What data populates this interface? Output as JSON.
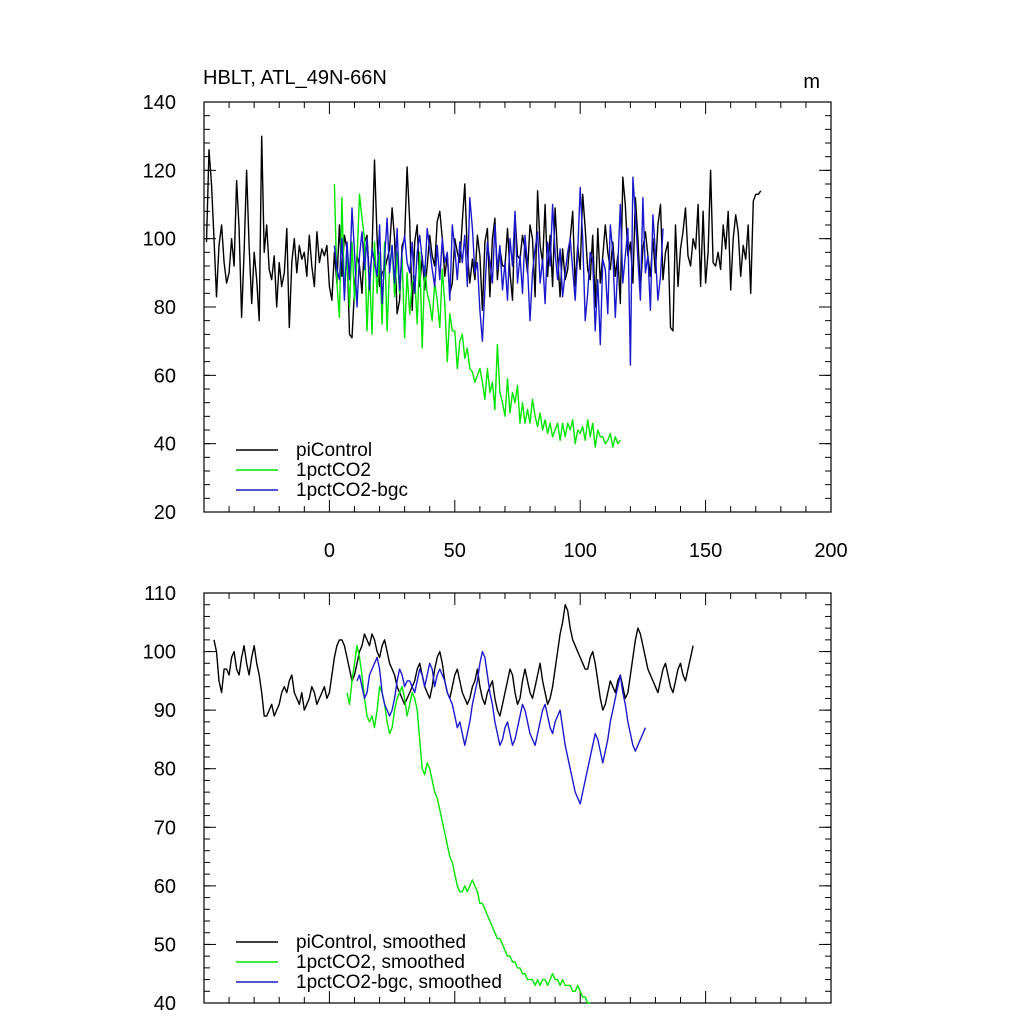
{
  "chart_data": [
    {
      "type": "line",
      "title": "HBLT, ATL_49N-66N",
      "units": "m",
      "xlim": [
        -50,
        200
      ],
      "ylim": [
        20,
        140
      ],
      "x_ticks": [
        0,
        50,
        100,
        150,
        200
      ],
      "x_tick_labels": [
        "0",
        "50",
        "100",
        "150",
        "200"
      ],
      "y_ticks": [
        20,
        40,
        60,
        80,
        100,
        120,
        140
      ],
      "y_tick_labels": [
        "20",
        "40",
        "60",
        "80",
        "100",
        "120",
        "140"
      ],
      "grid": false,
      "legend_position": "bottom-left",
      "series": [
        {
          "name": "piControl",
          "color": "#000000",
          "x_start": -49,
          "x_step": 1,
          "values": [
            99,
            126,
            116,
            100,
            83,
            98,
            104,
            93,
            87,
            90,
            100,
            92,
            117,
            103,
            77,
            96,
            120,
            98,
            81,
            96,
            88,
            76,
            130,
            96,
            104,
            91,
            88,
            95,
            80,
            93,
            86,
            90,
            103,
            74,
            93,
            100,
            90,
            98,
            94,
            96,
            89,
            101,
            92,
            86,
            102,
            93,
            97,
            95,
            98,
            86,
            82,
            96,
            87,
            104,
            89,
            101,
            97,
            72,
            71,
            85,
            95,
            92,
            84,
            99,
            101,
            88,
            96,
            123,
            100,
            86,
            90,
            91,
            94,
            97,
            109,
            100,
            78,
            82,
            98,
            100,
            121,
            105,
            79,
            99,
            104,
            86,
            95,
            85,
            92,
            101,
            95,
            92,
            105,
            108,
            100,
            89,
            95,
            84,
            87,
            100,
            96,
            93,
            105,
            116,
            96,
            87,
            94,
            88,
            101,
            95,
            79,
            99,
            103,
            83,
            100,
            106,
            88,
            97,
            92,
            92,
            103,
            90,
            82,
            107,
            95,
            94,
            101,
            97,
            90,
            104,
            100,
            83,
            114,
            98,
            93,
            110,
            89,
            101,
            86,
            109,
            95,
            83,
            97,
            88,
            91,
            100,
            108,
            86,
            98,
            91,
            113,
            103,
            91,
            88,
            101,
            80,
            103,
            87,
            95,
            104,
            96,
            91,
            99,
            89,
            95,
            81,
            118,
            110,
            95,
            99,
            87,
            112,
            100,
            85,
            97,
            102,
            95,
            89,
            100,
            90,
            104,
            110,
            88,
            96,
            99,
            74,
            73,
            104,
            86,
            97,
            102,
            109,
            95,
            92,
            100,
            97,
            110,
            86,
            108,
            87,
            96,
            120,
            93,
            92,
            96,
            91,
            104,
            97,
            108,
            85,
            100,
            107,
            102,
            89,
            98,
            94,
            104,
            84,
            111,
            113,
            113,
            114
          ]
        },
        {
          "name": "1pctCO2",
          "color": "#00e600",
          "x_start": 2,
          "x_step": 1,
          "values": [
            116,
            87,
            77,
            112,
            85,
            95,
            80,
            99,
            82,
            94,
            113,
            106,
            100,
            73,
            91,
            72,
            99,
            84,
            96,
            75,
            99,
            73,
            92,
            98,
            83,
            96,
            84,
            95,
            71,
            90,
            78,
            87,
            89,
            75,
            96,
            68,
            92,
            84,
            81,
            76,
            87,
            82,
            74,
            91,
            81,
            64,
            78,
            73,
            73,
            62,
            70,
            72,
            65,
            68,
            62,
            61,
            58,
            60,
            62,
            58,
            53,
            62,
            55,
            58,
            50,
            69,
            55,
            52,
            48,
            59,
            49,
            55,
            52,
            57,
            46,
            52,
            46,
            50,
            46,
            53,
            48,
            45,
            49,
            44,
            47,
            43,
            46,
            42,
            44,
            46,
            41,
            46,
            42,
            46,
            44,
            47,
            40,
            44,
            43,
            45,
            41,
            47,
            42,
            46,
            39,
            44,
            42,
            42,
            40,
            41,
            43,
            39,
            42,
            40,
            41
          ]
        },
        {
          "name": "1pctCO2-bgc",
          "color": "#1a1acc",
          "x_start": 2,
          "x_step": 1,
          "values": [
            98,
            91,
            88,
            100,
            82,
            99,
            88,
            109,
            96,
            80,
            95,
            102,
            91,
            100,
            85,
            97,
            93,
            89,
            104,
            81,
            94,
            106,
            90,
            98,
            87,
            103,
            85,
            96,
            101,
            93,
            90,
            99,
            84,
            96,
            101,
            94,
            89,
            103,
            97,
            91,
            86,
            98,
            88,
            100,
            93,
            96,
            82,
            104,
            97,
            88,
            99,
            93,
            101,
            86,
            112,
            103,
            90,
            93,
            79,
            70,
            85,
            99,
            93,
            87,
            104,
            91,
            98,
            85,
            93,
            82,
            100,
            92,
            108,
            87,
            95,
            84,
            101,
            92,
            76,
            90,
            97,
            102,
            87,
            94,
            81,
            99,
            92,
            110,
            96,
            88,
            97,
            83,
            90,
            96,
            100,
            91,
            82,
            96,
            115,
            100,
            76,
            84,
            96,
            94,
            73,
            88,
            69,
            94,
            91,
            78,
            104,
            96,
            77,
            92,
            110,
            87,
            95,
            103,
            63,
            118,
            107,
            94,
            82,
            112,
            90,
            95,
            79,
            107,
            96,
            82,
            89,
            103
          ]
        }
      ]
    },
    {
      "type": "line",
      "title": "",
      "xlim": [
        -50,
        200
      ],
      "ylim": [
        40,
        110
      ],
      "x_ticks": [
        0,
        50,
        100,
        150,
        200
      ],
      "y_ticks": [
        40,
        50,
        60,
        70,
        80,
        90,
        100,
        110
      ],
      "y_tick_labels": [
        "40",
        "50",
        "60",
        "70",
        "80",
        "90",
        "100",
        "110"
      ],
      "grid": false,
      "legend_position": "bottom-left",
      "series": [
        {
          "name": "piControl, smoothed",
          "color": "#000000",
          "x_start": -46,
          "x_step": 1,
          "values": [
            102,
            100,
            95,
            93,
            97,
            97,
            96,
            99,
            100,
            97,
            96,
            99,
            101,
            98,
            96,
            99,
            101,
            98,
            96,
            93,
            89,
            89,
            90,
            91,
            89,
            90,
            91,
            93,
            94,
            93,
            95,
            96,
            93,
            92,
            91,
            93,
            90,
            91,
            92,
            94,
            93,
            91,
            92,
            93,
            94,
            92,
            93,
            96,
            99,
            101,
            102,
            102,
            101,
            99,
            97,
            95,
            96,
            98,
            100,
            101,
            103,
            102,
            101,
            103,
            102,
            100,
            99,
            101,
            102,
            100,
            98,
            97,
            96,
            94,
            93,
            92,
            91,
            92,
            93,
            94,
            95,
            97,
            98,
            96,
            94,
            93,
            92,
            94,
            97,
            99,
            100,
            98,
            95,
            93,
            92,
            94,
            96,
            97,
            95,
            93,
            92,
            91,
            92,
            94,
            95,
            97,
            94,
            92,
            91,
            93,
            94,
            95,
            92,
            90,
            89,
            91,
            93,
            95,
            97,
            96,
            93,
            91,
            92,
            95,
            97,
            95,
            93,
            92,
            94,
            96,
            98,
            95,
            93,
            91,
            92,
            94,
            97,
            100,
            103,
            105,
            108,
            107,
            104,
            102,
            101,
            100,
            99,
            98,
            97,
            97,
            99,
            100,
            98,
            95,
            92,
            90,
            91,
            93,
            95,
            94,
            93,
            95,
            96,
            94,
            92,
            93,
            96,
            99,
            102,
            104,
            103,
            101,
            99,
            97,
            96,
            95,
            94,
            93,
            95,
            97,
            98,
            96,
            94,
            93,
            95,
            97,
            98,
            96,
            95,
            97,
            99,
            101
          ]
        },
        {
          "name": "1pctCO2, smoothed",
          "color": "#00e600",
          "x_start": 7,
          "x_step": 1,
          "values": [
            93,
            91,
            95,
            98,
            101,
            99,
            96,
            92,
            89,
            88,
            89,
            87,
            90,
            94,
            93,
            91,
            88,
            86,
            87,
            90,
            92,
            93,
            94,
            92,
            89,
            91,
            93,
            92,
            90,
            85,
            80,
            79,
            81,
            80,
            78,
            76,
            75,
            73,
            71,
            69,
            67,
            65,
            64,
            62,
            60,
            59,
            59,
            60,
            59,
            60,
            61,
            60,
            59,
            57,
            57,
            56,
            55,
            54,
            53,
            52,
            51,
            51,
            50,
            49,
            48,
            48,
            47,
            47,
            46,
            46,
            45,
            45,
            44,
            44,
            44,
            43,
            44,
            43,
            44,
            44,
            43,
            44,
            45,
            44,
            44,
            43,
            44,
            43,
            43,
            43,
            42,
            42,
            43,
            42,
            41,
            41,
            40,
            40
          ]
        },
        {
          "name": "1pctCO2-bgc, smoothed",
          "color": "#1a1acc",
          "x_start": 11,
          "x_step": 1,
          "values": [
            95,
            96,
            94,
            92,
            93,
            96,
            97,
            98,
            99,
            97,
            93,
            91,
            90,
            89,
            90,
            92,
            95,
            97,
            96,
            94,
            95,
            95,
            94,
            93,
            95,
            97,
            96,
            94,
            96,
            98,
            97,
            94,
            96,
            97,
            96,
            95,
            93,
            92,
            91,
            89,
            87,
            88,
            86,
            84,
            86,
            88,
            91,
            93,
            95,
            98,
            100,
            99,
            96,
            93,
            91,
            88,
            86,
            84,
            85,
            87,
            88,
            86,
            84,
            85,
            87,
            89,
            91,
            90,
            88,
            86,
            85,
            84,
            86,
            88,
            90,
            91,
            89,
            87,
            86,
            88,
            89,
            90,
            87,
            84,
            82,
            80,
            78,
            76,
            75,
            74,
            76,
            78,
            80,
            82,
            84,
            86,
            85,
            83,
            81,
            83,
            85,
            88,
            90,
            92,
            94,
            96,
            93,
            91,
            88,
            86,
            84,
            83,
            84,
            85,
            86,
            87
          ]
        }
      ]
    }
  ]
}
